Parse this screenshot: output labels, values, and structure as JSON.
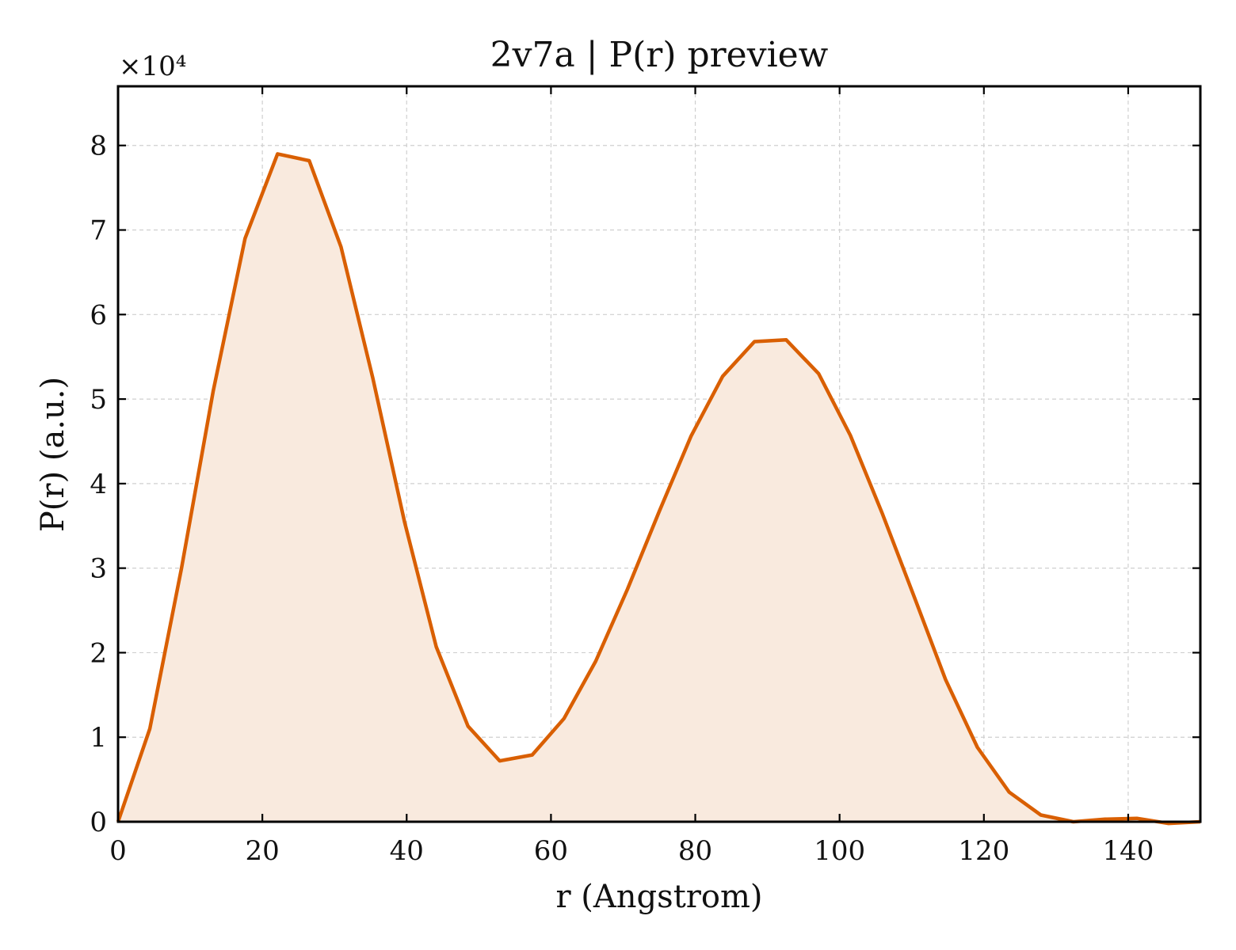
{
  "chart_data": {
    "type": "area",
    "title": "2v7a | P(r) preview",
    "xlabel": "r (Angstrom)",
    "ylabel": "P(r) (a.u.)",
    "y_offset_label": "×10⁴",
    "xlim": [
      0,
      150
    ],
    "ylim": [
      0,
      8.7
    ],
    "xticks": [
      0,
      20,
      40,
      60,
      80,
      100,
      120,
      140
    ],
    "yticks": [
      0,
      1,
      2,
      3,
      4,
      5,
      6,
      7,
      8
    ],
    "grid": true,
    "line_color": "#d95f02",
    "fill_color": "#f9eade",
    "series": [
      {
        "x": [
          0,
          4.4,
          8.8,
          13.2,
          17.6,
          22.1,
          26.5,
          30.9,
          35.3,
          39.7,
          44.1,
          48.5,
          52.9,
          57.4,
          61.8,
          66.2,
          70.6,
          75.0,
          79.4,
          83.8,
          88.2,
          92.6,
          97.1,
          101.5,
          105.9,
          110.3,
          114.7,
          119.1,
          123.5,
          127.9,
          132.4,
          136.8,
          141.2,
          145.6,
          150.0
        ],
        "y": [
          0,
          1.1,
          3.0,
          5.1,
          6.9,
          7.9,
          7.82,
          6.8,
          5.25,
          3.55,
          2.07,
          1.13,
          0.72,
          0.79,
          1.22,
          1.9,
          2.75,
          3.67,
          4.56,
          5.27,
          5.68,
          5.7,
          5.3,
          4.57,
          3.65,
          2.67,
          1.68,
          0.88,
          0.35,
          0.08,
          0.0,
          0.03,
          0.04,
          -0.02,
          0.0
        ]
      }
    ]
  }
}
